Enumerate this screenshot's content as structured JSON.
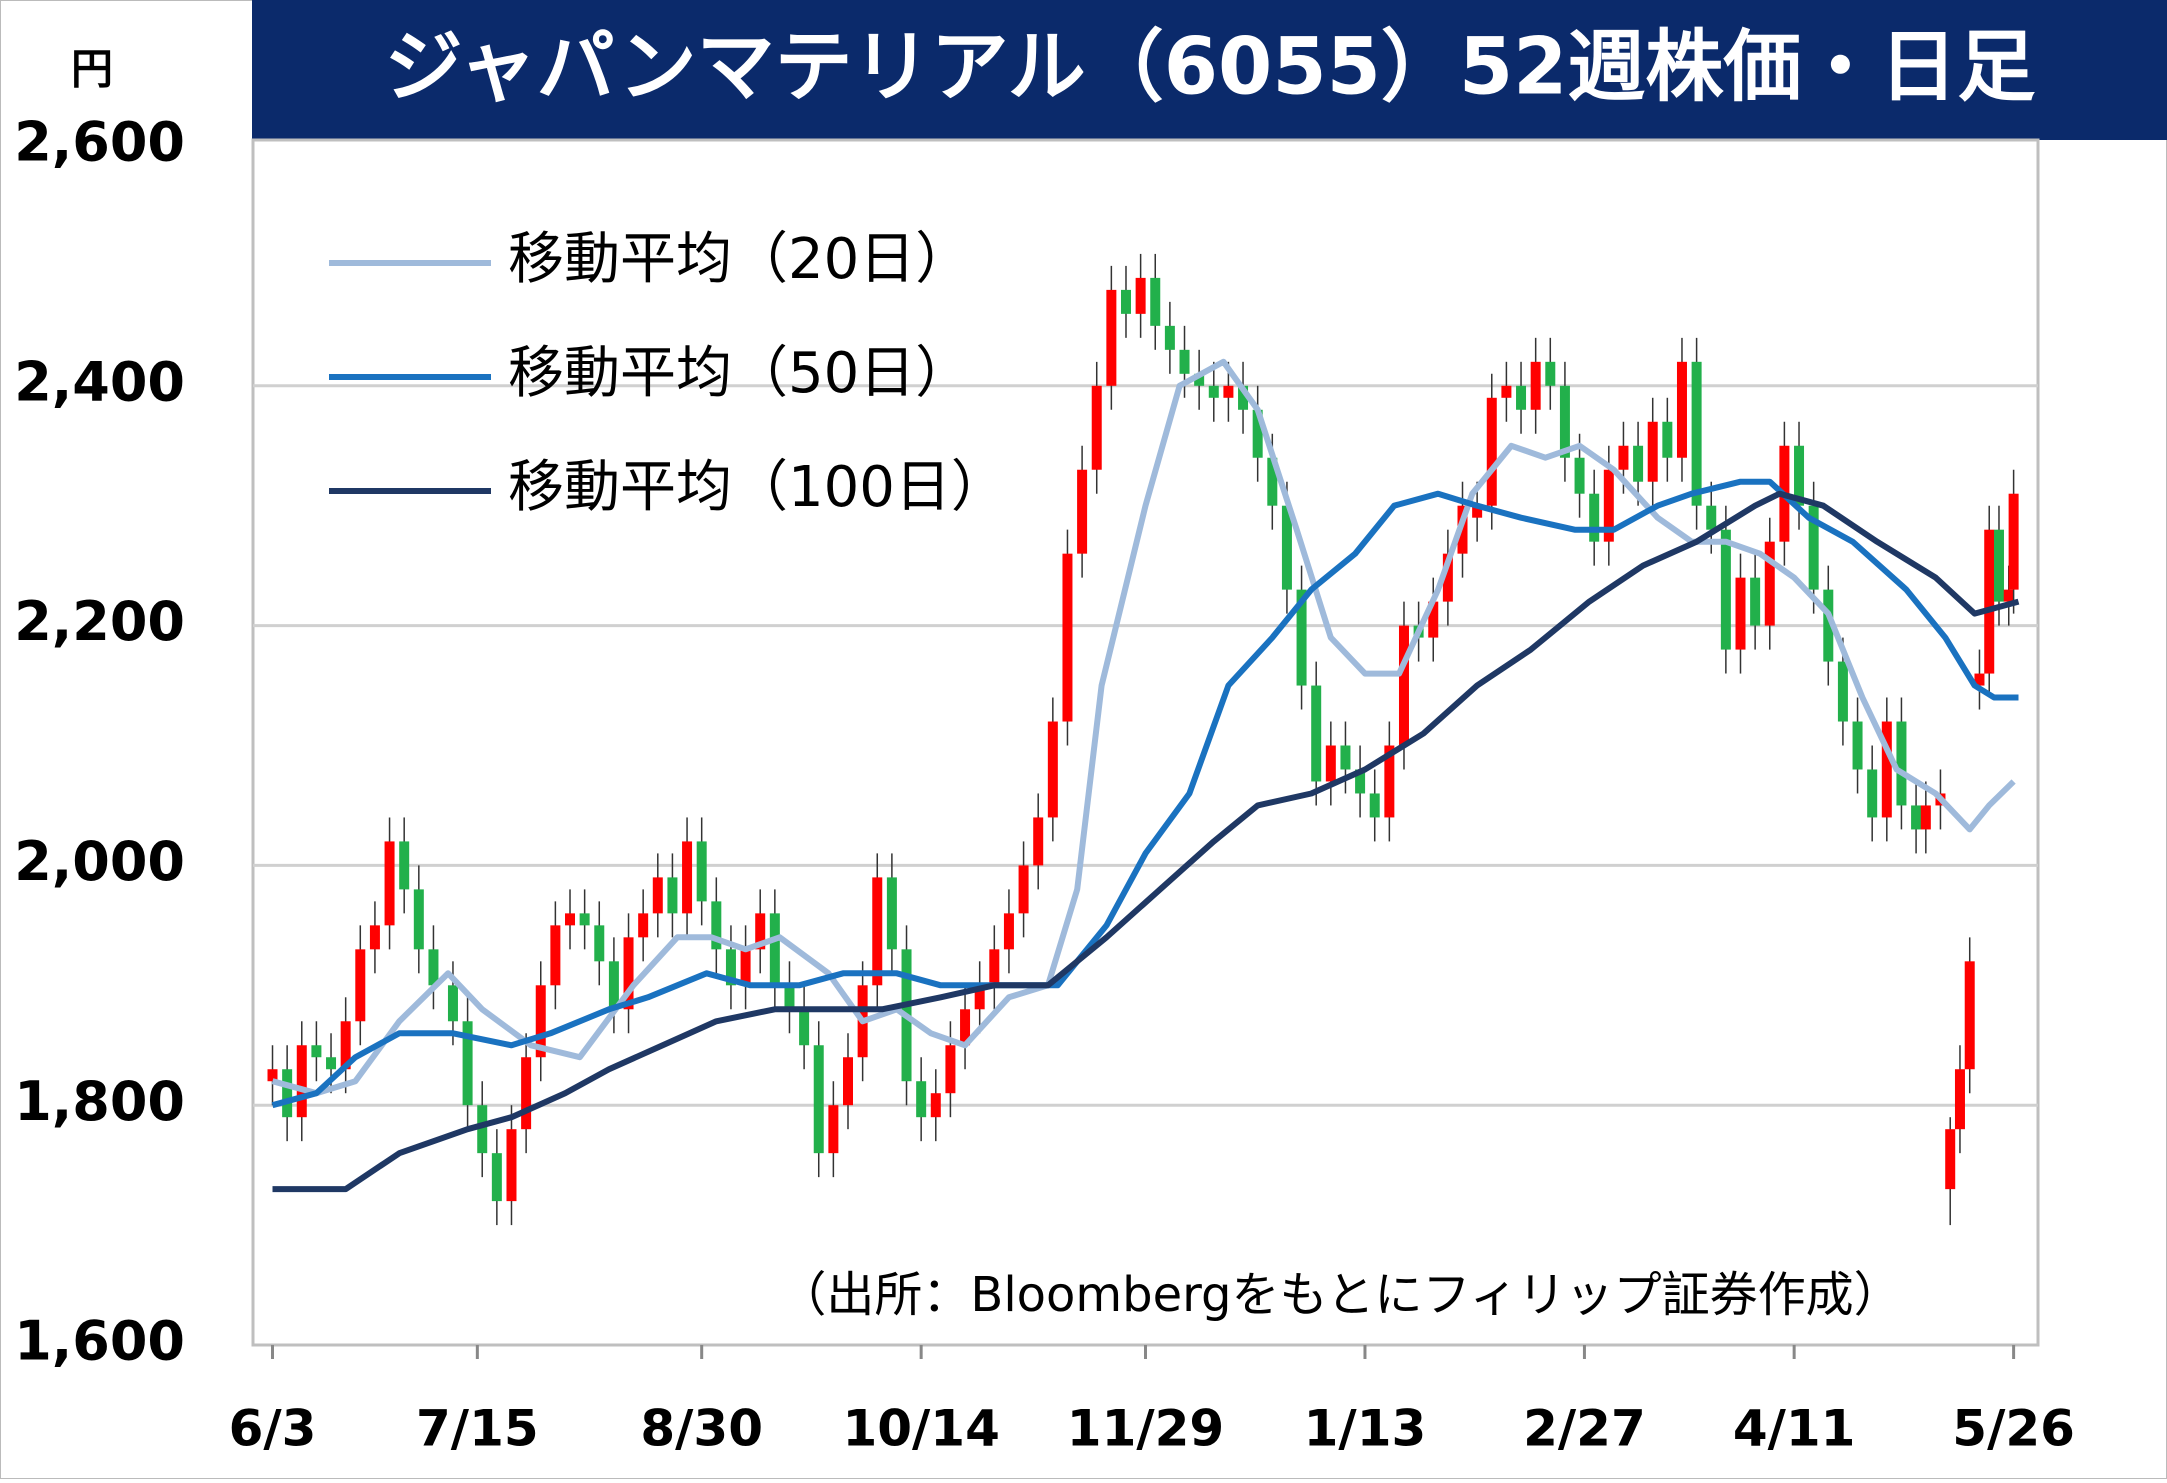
{
  "chart_data": {
    "type": "candlestick",
    "title": "ジャパンマテリアル（6055）52週株価・日足",
    "y_label": "円",
    "annotation": "（出所：Bloombergをもとにフィリップ証券作成）",
    "up_color": "#ff0000",
    "down_color": "#22b04b",
    "grid": true,
    "legend": "upper-left",
    "xlim": [
      -4,
      362
    ],
    "ylim": [
      1600,
      2600
    ],
    "xticks": [
      {
        "value": 0,
        "label": "6/3"
      },
      {
        "value": 42,
        "label": "7/15"
      },
      {
        "value": 88,
        "label": "8/30"
      },
      {
        "value": 133,
        "label": "10/14"
      },
      {
        "value": 179,
        "label": "11/29"
      },
      {
        "value": 224,
        "label": "1/13"
      },
      {
        "value": 269,
        "label": "2/27"
      },
      {
        "value": 312,
        "label": "4/11"
      },
      {
        "value": 357,
        "label": "5/26"
      }
    ],
    "yticks": [
      {
        "value": 1600,
        "label": "1,600"
      },
      {
        "value": 1800,
        "label": "1,800"
      },
      {
        "value": 2000,
        "label": "2,000"
      },
      {
        "value": 2200,
        "label": "2,200"
      },
      {
        "value": 2400,
        "label": "2,400"
      },
      {
        "value": 2600,
        "label": "2,600"
      }
    ],
    "x": [
      0,
      3,
      6,
      9,
      12,
      15,
      18,
      21,
      24,
      27,
      30,
      33,
      37,
      40,
      43,
      46,
      49,
      52,
      55,
      58,
      61,
      64,
      67,
      70,
      73,
      76,
      79,
      82,
      85,
      88,
      91,
      94,
      97,
      100,
      103,
      106,
      109,
      112,
      115,
      118,
      121,
      124,
      127,
      130,
      133,
      136,
      139,
      142,
      145,
      148,
      151,
      154,
      157,
      160,
      163,
      166,
      169,
      172,
      175,
      178,
      181,
      184,
      187,
      190,
      193,
      196,
      199,
      202,
      205,
      208,
      211,
      214,
      217,
      220,
      223,
      226,
      229,
      232,
      235,
      238,
      241,
      244,
      247,
      250,
      253,
      256,
      259,
      262,
      265,
      268,
      271,
      274,
      277,
      280,
      283,
      286,
      289,
      292,
      295,
      298,
      301,
      304,
      307,
      310,
      313,
      316,
      319,
      322,
      325,
      328,
      331,
      334,
      337,
      339,
      342,
      344,
      346,
      348,
      350,
      352,
      354,
      356,
      357
    ],
    "open": [
      1820,
      1830,
      1790,
      1850,
      1840,
      1830,
      1870,
      1930,
      1950,
      2020,
      1980,
      1930,
      1900,
      1870,
      1800,
      1760,
      1720,
      1780,
      1840,
      1900,
      1950,
      1960,
      1950,
      1920,
      1880,
      1940,
      1960,
      1990,
      1960,
      2020,
      1970,
      1930,
      1900,
      1930,
      1960,
      1900,
      1880,
      1850,
      1760,
      1800,
      1840,
      1900,
      1990,
      1930,
      1820,
      1790,
      1810,
      1850,
      1880,
      1900,
      1930,
      1960,
      2000,
      2040,
      2120,
      2260,
      2330,
      2400,
      2480,
      2460,
      2490,
      2450,
      2430,
      2410,
      2400,
      2390,
      2400,
      2380,
      2340,
      2300,
      2230,
      2150,
      2070,
      2100,
      2080,
      2060,
      2040,
      2100,
      2200,
      2190,
      2220,
      2260,
      2290,
      2300,
      2390,
      2400,
      2380,
      2420,
      2400,
      2340,
      2310,
      2270,
      2330,
      2350,
      2320,
      2370,
      2340,
      2420,
      2300,
      2280,
      2180,
      2240,
      2200,
      2270,
      2350,
      2300,
      2230,
      2170,
      2120,
      2080,
      2040,
      2120,
      2050,
      2030,
      2050,
      1730,
      1780,
      1830,
      2150,
      2160,
      2280,
      2220,
      2230
    ],
    "high": [
      1850,
      1850,
      1870,
      1870,
      1860,
      1890,
      1950,
      1970,
      2040,
      2040,
      2000,
      1950,
      1920,
      1890,
      1820,
      1780,
      1800,
      1860,
      1920,
      1970,
      1980,
      1980,
      1970,
      1940,
      1960,
      1980,
      2010,
      2010,
      2040,
      2040,
      1990,
      1950,
      1950,
      1980,
      1980,
      1920,
      1900,
      1870,
      1820,
      1860,
      1920,
      2010,
      2010,
      1950,
      1840,
      1830,
      1870,
      1900,
      1920,
      1950,
      1980,
      2020,
      2060,
      2140,
      2280,
      2350,
      2420,
      2500,
      2500,
      2510,
      2510,
      2470,
      2450,
      2430,
      2420,
      2420,
      2420,
      2400,
      2360,
      2320,
      2250,
      2170,
      2120,
      2120,
      2100,
      2080,
      2120,
      2220,
      2220,
      2240,
      2280,
      2320,
      2320,
      2410,
      2420,
      2420,
      2440,
      2440,
      2420,
      2360,
      2330,
      2350,
      2370,
      2370,
      2390,
      2390,
      2440,
      2440,
      2320,
      2300,
      2260,
      2260,
      2290,
      2370,
      2370,
      2320,
      2250,
      2190,
      2140,
      2100,
      2140,
      2140,
      2070,
      2070,
      2080,
      1790,
      1850,
      1940,
      2180,
      2300,
      2300,
      2250,
      2330
    ],
    "low": [
      1800,
      1770,
      1770,
      1820,
      1810,
      1810,
      1850,
      1910,
      1930,
      1960,
      1910,
      1880,
      1850,
      1780,
      1740,
      1700,
      1700,
      1760,
      1820,
      1880,
      1930,
      1930,
      1900,
      1860,
      1860,
      1920,
      1940,
      1940,
      1940,
      1950,
      1910,
      1880,
      1880,
      1910,
      1880,
      1860,
      1830,
      1740,
      1740,
      1780,
      1820,
      1880,
      1910,
      1800,
      1770,
      1770,
      1790,
      1830,
      1860,
      1880,
      1910,
      1940,
      1980,
      2020,
      2100,
      2240,
      2310,
      2380,
      2440,
      2440,
      2430,
      2410,
      2390,
      2380,
      2370,
      2370,
      2360,
      2320,
      2280,
      2210,
      2130,
      2050,
      2050,
      2060,
      2040,
      2020,
      2020,
      2080,
      2170,
      2170,
      2200,
      2240,
      2270,
      2280,
      2370,
      2360,
      2360,
      2380,
      2320,
      2290,
      2250,
      2250,
      2310,
      2300,
      2300,
      2320,
      2320,
      2280,
      2260,
      2160,
      2160,
      2180,
      2180,
      2250,
      2280,
      2210,
      2150,
      2100,
      2060,
      2020,
      2020,
      2030,
      2010,
      2010,
      2030,
      1700,
      1760,
      1810,
      2130,
      2140,
      2200,
      2200,
      2210
    ],
    "close": [
      1830,
      1790,
      1850,
      1840,
      1830,
      1870,
      1930,
      1950,
      2020,
      1980,
      1930,
      1900,
      1870,
      1800,
      1760,
      1720,
      1780,
      1840,
      1900,
      1950,
      1960,
      1950,
      1920,
      1880,
      1940,
      1960,
      1990,
      1960,
      2020,
      1970,
      1930,
      1900,
      1930,
      1960,
      1900,
      1880,
      1850,
      1760,
      1800,
      1840,
      1900,
      1990,
      1930,
      1820,
      1790,
      1810,
      1850,
      1880,
      1900,
      1930,
      1960,
      2000,
      2040,
      2120,
      2260,
      2330,
      2400,
      2480,
      2460,
      2490,
      2450,
      2430,
      2410,
      2400,
      2390,
      2400,
      2380,
      2340,
      2300,
      2230,
      2150,
      2070,
      2100,
      2080,
      2060,
      2040,
      2100,
      2200,
      2190,
      2220,
      2260,
      2300,
      2300,
      2390,
      2400,
      2380,
      2420,
      2400,
      2340,
      2310,
      2270,
      2330,
      2350,
      2320,
      2370,
      2340,
      2420,
      2300,
      2280,
      2180,
      2240,
      2200,
      2270,
      2350,
      2300,
      2230,
      2170,
      2120,
      2080,
      2040,
      2120,
      2050,
      2030,
      2050,
      2060,
      1780,
      1830,
      1920,
      2160,
      2280,
      2220,
      2230,
      2310
    ],
    "series": [
      {
        "name": "移動平均（20日）",
        "color": "#9fbadb",
        "x": [
          0,
          9,
          17,
          26,
          36,
          43,
          53,
          63,
          74,
          83,
          90,
          97,
          104,
          114,
          121,
          128,
          135,
          142,
          151,
          159,
          165,
          170,
          179,
          186,
          195,
          202,
          210,
          217,
          224,
          231,
          239,
          246,
          254,
          261,
          268,
          275,
          284,
          291,
          298,
          305,
          312,
          319,
          326,
          333,
          341,
          348,
          352,
          357
        ],
        "values": [
          1820,
          1810,
          1820,
          1870,
          1910,
          1880,
          1850,
          1840,
          1900,
          1940,
          1940,
          1930,
          1940,
          1910,
          1870,
          1880,
          1860,
          1850,
          1890,
          1900,
          1980,
          2150,
          2300,
          2400,
          2420,
          2380,
          2280,
          2190,
          2160,
          2160,
          2230,
          2310,
          2350,
          2340,
          2350,
          2330,
          2290,
          2270,
          2270,
          2260,
          2240,
          2210,
          2140,
          2080,
          2060,
          2030,
          2050,
          2070
        ]
      },
      {
        "name": "移動平均（50日）",
        "color": "#1a72c0",
        "x": [
          0,
          9,
          17,
          26,
          37,
          49,
          57,
          69,
          77,
          89,
          98,
          108,
          117,
          128,
          137,
          145,
          154,
          161,
          171,
          179,
          188,
          196,
          205,
          213,
          222,
          230,
          239,
          247,
          256,
          267,
          275,
          284,
          291,
          301,
          307,
          315,
          324,
          335,
          343,
          349,
          353,
          358
        ],
        "values": [
          1800,
          1810,
          1840,
          1860,
          1860,
          1850,
          1860,
          1880,
          1890,
          1910,
          1900,
          1900,
          1910,
          1910,
          1900,
          1900,
          1900,
          1900,
          1950,
          2010,
          2060,
          2150,
          2190,
          2230,
          2260,
          2300,
          2310,
          2300,
          2290,
          2280,
          2280,
          2300,
          2310,
          2320,
          2320,
          2290,
          2270,
          2230,
          2190,
          2150,
          2140,
          2140
        ]
      },
      {
        "name": "移動平均（100日）",
        "color": "#1f3864",
        "x": [
          0,
          15,
          26,
          40,
          49,
          60,
          69,
          80,
          91,
          103,
          114,
          125,
          137,
          148,
          159,
          171,
          182,
          193,
          202,
          213,
          224,
          236,
          247,
          258,
          270,
          281,
          292,
          304,
          309,
          318,
          329,
          341,
          349,
          358
        ],
        "values": [
          1730,
          1730,
          1760,
          1780,
          1790,
          1810,
          1830,
          1850,
          1870,
          1880,
          1880,
          1880,
          1890,
          1900,
          1900,
          1940,
          1980,
          2020,
          2050,
          2060,
          2080,
          2110,
          2150,
          2180,
          2220,
          2250,
          2270,
          2300,
          2310,
          2300,
          2270,
          2240,
          2210,
          2220
        ]
      }
    ]
  }
}
